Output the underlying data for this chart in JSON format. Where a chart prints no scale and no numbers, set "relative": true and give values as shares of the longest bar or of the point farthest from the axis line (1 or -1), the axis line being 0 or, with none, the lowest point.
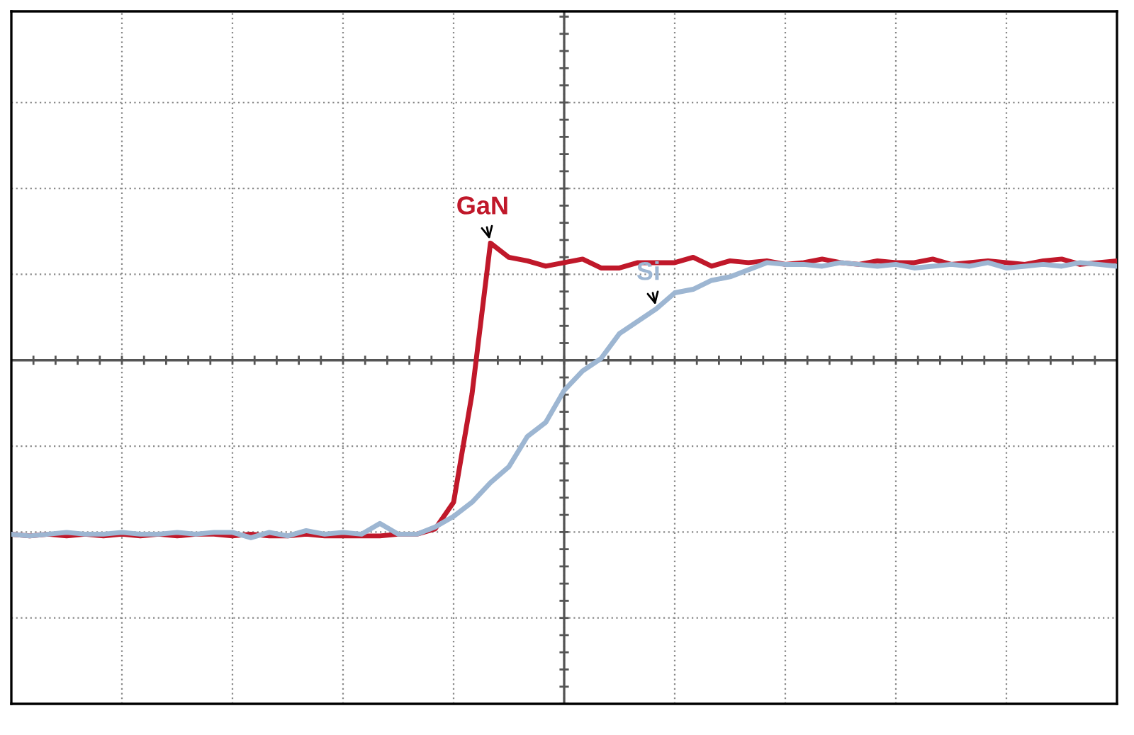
{
  "chart_data": {
    "type": "line",
    "relative": true,
    "grid": true,
    "legend": false,
    "categories": [
      null,
      null,
      null,
      null,
      null,
      null,
      null,
      null,
      null,
      null,
      null,
      null,
      null,
      null,
      null,
      null,
      null,
      null,
      null,
      null,
      null,
      null,
      null,
      null,
      null,
      null,
      null,
      null,
      null,
      null,
      null,
      null,
      null,
      null,
      null,
      null,
      null,
      null,
      null,
      null,
      null,
      null,
      null,
      null,
      null,
      null,
      null,
      null,
      null,
      null,
      null,
      null,
      null,
      null,
      null,
      null,
      null,
      null,
      null,
      null,
      null
    ],
    "series": [
      {
        "name": "GaN",
        "color": "#c0182a",
        "values": [
          -0.98,
          -0.99,
          -0.98,
          -0.99,
          -0.98,
          -0.99,
          -0.98,
          -0.99,
          -0.98,
          -0.99,
          -0.98,
          -0.98,
          -0.99,
          -0.98,
          -0.99,
          -0.99,
          -0.98,
          -0.99,
          -0.99,
          -0.99,
          -0.99,
          -0.98,
          -0.98,
          -0.95,
          -0.8,
          -0.19,
          0.66,
          0.58,
          0.56,
          0.53,
          0.55,
          0.57,
          0.52,
          0.52,
          0.55,
          0.55,
          0.55,
          0.58,
          0.53,
          0.56,
          0.55,
          0.56,
          0.54,
          0.55,
          0.57,
          0.55,
          0.54,
          0.56,
          0.55,
          0.55,
          0.57,
          0.54,
          0.55,
          0.56,
          0.55,
          0.54,
          0.56,
          0.57,
          0.54,
          0.55,
          0.56
        ]
      },
      {
        "name": "Si",
        "color": "#9db6d2",
        "values": [
          -0.98,
          -0.99,
          -0.98,
          -0.97,
          -0.98,
          -0.98,
          -0.97,
          -0.98,
          -0.98,
          -0.97,
          -0.98,
          -0.97,
          -0.97,
          -1.0,
          -0.97,
          -0.99,
          -0.96,
          -0.98,
          -0.97,
          -0.98,
          -0.92,
          -0.98,
          -0.98,
          -0.94,
          -0.88,
          -0.8,
          -0.69,
          -0.6,
          -0.43,
          -0.35,
          -0.17,
          -0.06,
          0.01,
          0.15,
          0.22,
          0.29,
          0.38,
          0.4,
          0.45,
          0.47,
          0.51,
          0.55,
          0.54,
          0.54,
          0.53,
          0.55,
          0.54,
          0.53,
          0.54,
          0.52,
          0.53,
          0.54,
          0.53,
          0.55,
          0.52,
          0.53,
          0.54,
          0.53,
          0.55,
          0.54,
          0.53
        ]
      }
    ]
  }
}
